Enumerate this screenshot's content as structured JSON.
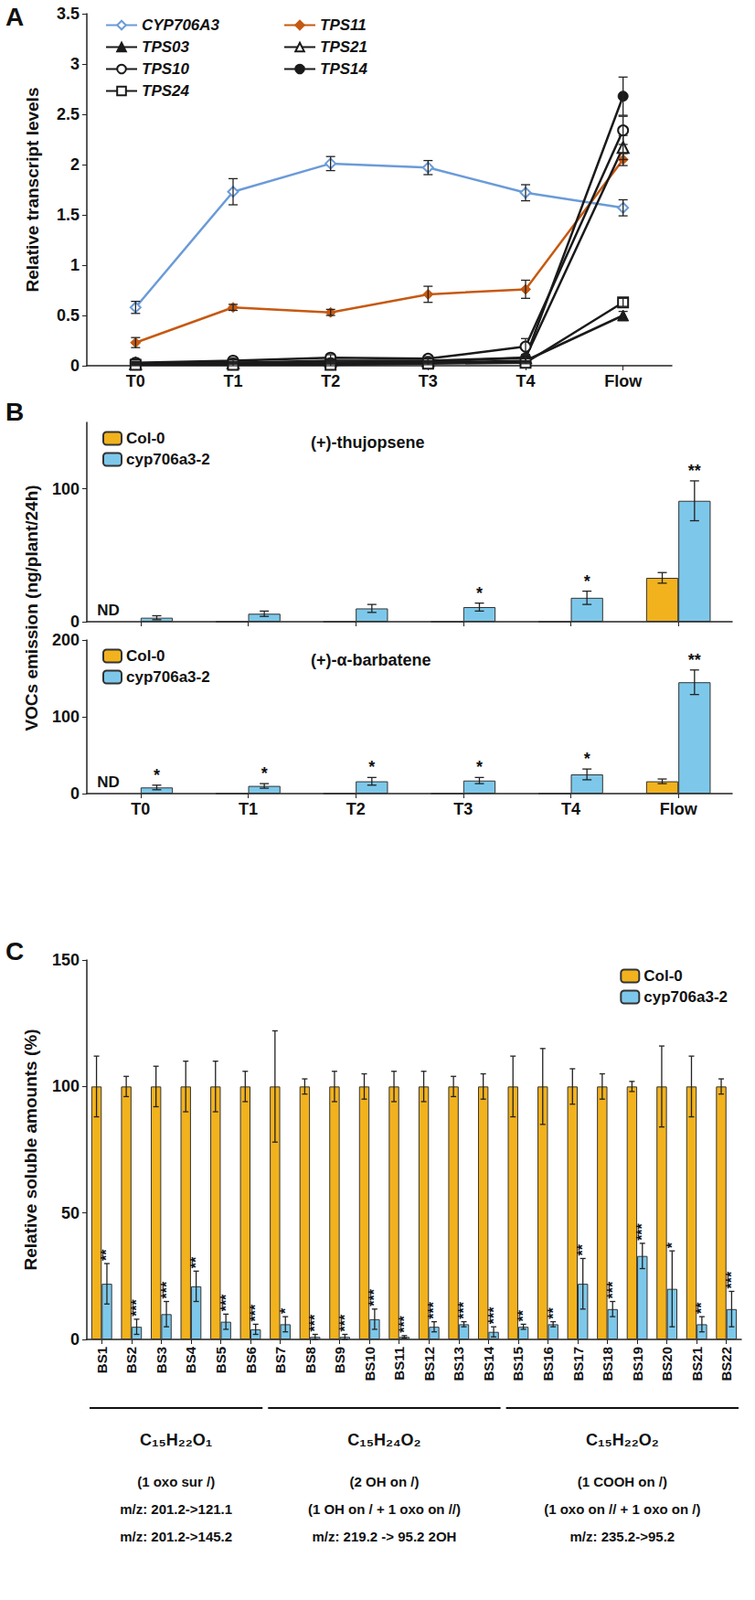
{
  "chart_data": [
    {
      "type": "line",
      "panel_label": "A",
      "ylabel": "Relative transcript levels",
      "categories": [
        "T0",
        "T1",
        "T2",
        "T3",
        "T4",
        "Flow"
      ],
      "ylim": [
        0,
        3.5
      ],
      "yticks": [
        0,
        0.5,
        1,
        1.5,
        2,
        2.5,
        3,
        3.5
      ],
      "grid": false,
      "legend": "upper left",
      "series": [
        {
          "name": "CYP706A3",
          "color": "#6b9bd8",
          "marker": "diamond-open",
          "values": [
            0.58,
            1.73,
            2.01,
            1.97,
            1.72,
            1.57
          ],
          "errors": [
            0.06,
            0.13,
            0.07,
            0.07,
            0.08,
            0.08
          ]
        },
        {
          "name": "TPS11",
          "color": "#c65911",
          "marker": "diamond",
          "values": [
            0.23,
            0.58,
            0.53,
            0.71,
            0.76,
            2.05
          ],
          "errors": [
            0.05,
            0.03,
            0.03,
            0.08,
            0.09,
            0.06
          ]
        },
        {
          "name": "TPS03",
          "color": "#1a1a1a",
          "marker": "triangle",
          "values": [
            0.02,
            0.03,
            0.03,
            0.03,
            0.05,
            0.5
          ],
          "errors": [
            0.01,
            0.01,
            0.01,
            0.01,
            0.02,
            0.04
          ]
        },
        {
          "name": "TPS21",
          "color": "#1a1a1a",
          "marker": "triangle-open",
          "values": [
            0.02,
            0.03,
            0.05,
            0.05,
            0.08,
            2.17
          ],
          "errors": [
            0.01,
            0.01,
            0.02,
            0.02,
            0.03,
            0.12
          ]
        },
        {
          "name": "TPS10",
          "color": "#1a1a1a",
          "marker": "circle-open",
          "values": [
            0.03,
            0.05,
            0.08,
            0.07,
            0.19,
            2.34
          ],
          "errors": [
            0.01,
            0.02,
            0.03,
            0.02,
            0.08,
            0.14
          ]
        },
        {
          "name": "TPS14",
          "color": "#1a1a1a",
          "marker": "circle",
          "values": [
            0.02,
            0.03,
            0.03,
            0.04,
            0.08,
            2.68
          ],
          "errors": [
            0.01,
            0.01,
            0.01,
            0.01,
            0.03,
            0.19
          ]
        },
        {
          "name": "TPS24",
          "color": "#1a1a1a",
          "marker": "square-open",
          "values": [
            0.01,
            0.01,
            0.01,
            0.02,
            0.03,
            0.63
          ],
          "errors": [
            0.01,
            0.01,
            0.01,
            0.01,
            0.01,
            0.04
          ]
        }
      ]
    },
    {
      "type": "bar",
      "panel_label": "B",
      "title": "(+)-thujopsene",
      "ylabel": "VOCs emission (ng/plant/24h)",
      "categories": [
        "T0",
        "T1",
        "T2",
        "T3",
        "T4",
        "Flow"
      ],
      "ylim": [
        0,
        150
      ],
      "yticks": [
        0,
        100
      ],
      "grid": false,
      "legend": "upper left",
      "tick_labels": "y",
      "series": [
        {
          "name": "Col-0",
          "color": "#f2b21e",
          "values": [
            null,
            0,
            0,
            0,
            0,
            33
          ],
          "errors": [
            null,
            0,
            0,
            0,
            0,
            4
          ]
        },
        {
          "name": "cyp706a3-2",
          "color": "#7dc8ea",
          "values": [
            3,
            6,
            10,
            11,
            18,
            91
          ],
          "errors": [
            1.5,
            2,
            3,
            3,
            5,
            15
          ],
          "significance": [
            null,
            null,
            null,
            "*",
            "*",
            "**"
          ]
        }
      ],
      "annotations": [
        {
          "category": "T0",
          "text": "ND"
        }
      ]
    },
    {
      "type": "bar",
      "title": "(+)-α-barbatene",
      "categories": [
        "T0",
        "T1",
        "T2",
        "T3",
        "T4",
        "Flow"
      ],
      "ylim": [
        0,
        200
      ],
      "yticks": [
        0,
        100,
        200
      ],
      "grid": false,
      "legend": "upper left",
      "series": [
        {
          "name": "Col-0",
          "color": "#f2b21e",
          "values": [
            null,
            0,
            0,
            0,
            0,
            16
          ],
          "errors": [
            null,
            0,
            0,
            0,
            0,
            3
          ]
        },
        {
          "name": "cyp706a3-2",
          "color": "#7dc8ea",
          "values": [
            8,
            10,
            16,
            17,
            25,
            145
          ],
          "errors": [
            3,
            3,
            5,
            4,
            7,
            16
          ],
          "significance": [
            "*",
            "*",
            "*",
            "*",
            "*",
            "**"
          ]
        }
      ],
      "annotations": [
        {
          "category": "T0",
          "text": "ND"
        }
      ]
    },
    {
      "type": "bar",
      "panel_label": "C",
      "ylabel": "Relative soluble amounts (%)",
      "categories": [
        "BS1",
        "BS2",
        "BS3",
        "BS4",
        "BS5",
        "BS6",
        "BS7",
        "BS8",
        "BS9",
        "BS10",
        "BS11",
        "BS12",
        "BS13",
        "BS14",
        "BS15",
        "BS16",
        "BS17",
        "BS18",
        "BS19",
        "BS20",
        "BS21",
        "BS22"
      ],
      "ylim": [
        0,
        150
      ],
      "yticks": [
        0,
        50,
        100,
        150
      ],
      "grid": false,
      "legend": "upper right",
      "series": [
        {
          "name": "Col-0",
          "color": "#f2b21e",
          "values": [
            100,
            100,
            100,
            100,
            100,
            100,
            100,
            100,
            100,
            100,
            100,
            100,
            100,
            100,
            100,
            100,
            100,
            100,
            100,
            100,
            100,
            100
          ],
          "errors": [
            12,
            4,
            8,
            10,
            10,
            6,
            22,
            3,
            6,
            5,
            6,
            6,
            4,
            5,
            12,
            15,
            7,
            5,
            2,
            16,
            12,
            3
          ]
        },
        {
          "name": "cyp706a3-2",
          "color": "#7dc8ea",
          "values": [
            22,
            5,
            10,
            21,
            7,
            4,
            6,
            1,
            1,
            8,
            1,
            5,
            6,
            3,
            5,
            6,
            22,
            12,
            33,
            20,
            6,
            12
          ],
          "errors": [
            8,
            3,
            5,
            6,
            3,
            2,
            3,
            1,
            1,
            4,
            0.5,
            2,
            1,
            2,
            1,
            1,
            10,
            3,
            5,
            15,
            3,
            7
          ],
          "significance": [
            "**",
            "***",
            "***",
            "**",
            "***",
            "***",
            "*",
            "***",
            "***",
            "***",
            "***",
            "***",
            "***",
            "***",
            "**",
            "**",
            "**",
            "***",
            "***",
            "*",
            "**",
            "***"
          ]
        }
      ],
      "groups": [
        {
          "from": "BS1",
          "to": "BS6",
          "lines": [
            "C₁₅H₂₂O₁",
            "(1 oxo sur /)",
            "m/z: 201.2->121.1",
            "m/z: 201.2->145.2"
          ]
        },
        {
          "from": "BS7",
          "to": "BS14",
          "lines": [
            "C₁₅H₂₄O₂",
            "(2 OH on /)",
            "(1 OH on / + 1 oxo on //)",
            "m/z: 219.2 -> 95.2 2OH"
          ]
        },
        {
          "from": "BS15",
          "to": "BS22",
          "lines": [
            "C₁₅H₂₂O₂",
            "(1 COOH on /)",
            "(1 oxo on // + 1 oxo on /)",
            "m/z: 235.2->95.2"
          ]
        }
      ]
    }
  ]
}
